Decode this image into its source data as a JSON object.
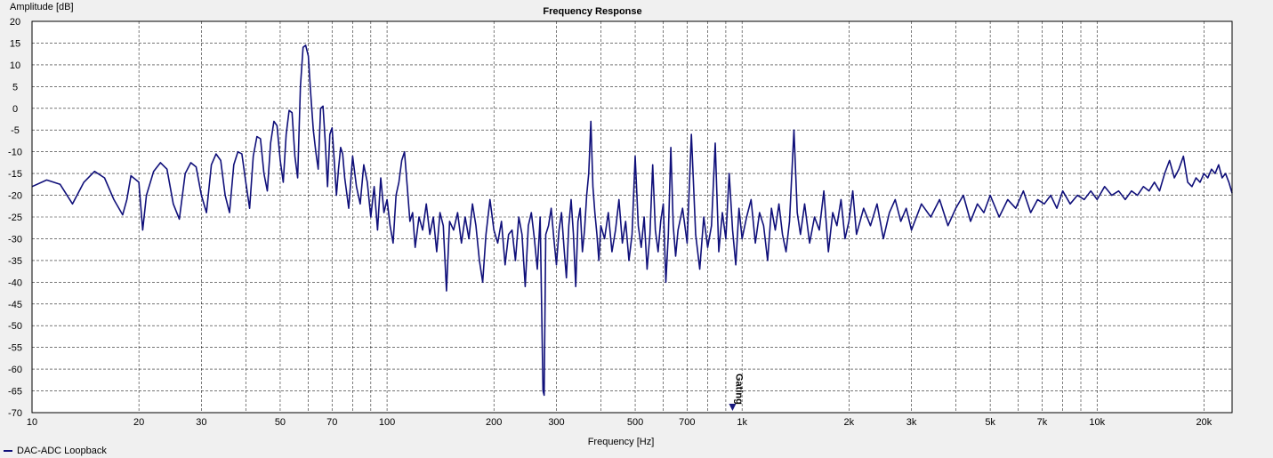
{
  "chart_data": {
    "type": "line",
    "title": "Frequency Response",
    "xlabel": "Frequency [Hz]",
    "ylabel": "Amplitude [dB]",
    "x_scale": "log",
    "xlim": [
      10,
      24000
    ],
    "ylim": [
      -70,
      20
    ],
    "grid": true,
    "legend_position": "bottom-left",
    "x_ticks": [
      10,
      20,
      30,
      50,
      70,
      100,
      200,
      300,
      500,
      700,
      1000,
      2000,
      3000,
      5000,
      7000,
      10000,
      20000
    ],
    "x_tick_labels": [
      "10",
      "20",
      "30",
      "50",
      "70",
      "100",
      "200",
      "300",
      "500",
      "700",
      "1k",
      "2k",
      "3k",
      "5k",
      "7k",
      "10k",
      "20k"
    ],
    "y_ticks": [
      20,
      15,
      10,
      5,
      0,
      -5,
      -10,
      -15,
      -20,
      -25,
      -30,
      -35,
      -40,
      -45,
      -50,
      -55,
      -60,
      -65,
      -70
    ],
    "y_tick_labels": [
      "20",
      "15",
      "10",
      "5",
      "0",
      "-5",
      "-10",
      "-15",
      "-20",
      "-25",
      "-30",
      "-35",
      "-40",
      "-45",
      "-50",
      "-55",
      "-60",
      "-65",
      "-70"
    ],
    "marker": {
      "label": "Gating",
      "x": 940,
      "color": "#1a1a7e"
    },
    "series": [
      {
        "name": "DAC-ADC Loopback",
        "color": "#10107a",
        "points": [
          [
            10,
            -18
          ],
          [
            11,
            -16.5
          ],
          [
            12,
            -17.5
          ],
          [
            13,
            -22
          ],
          [
            14,
            -17
          ],
          [
            15,
            -14.5
          ],
          [
            16,
            -16
          ],
          [
            17,
            -21
          ],
          [
            18,
            -24.5
          ],
          [
            18.5,
            -21
          ],
          [
            19,
            -15.5
          ],
          [
            20,
            -17
          ],
          [
            20.5,
            -28
          ],
          [
            21,
            -20
          ],
          [
            22,
            -14.5
          ],
          [
            23,
            -12.5
          ],
          [
            24,
            -14
          ],
          [
            25,
            -22
          ],
          [
            26,
            -25.5
          ],
          [
            27,
            -15
          ],
          [
            28,
            -12.5
          ],
          [
            29,
            -13.5
          ],
          [
            30,
            -20
          ],
          [
            31,
            -24
          ],
          [
            32,
            -13
          ],
          [
            33,
            -10.5
          ],
          [
            34,
            -12
          ],
          [
            35,
            -20
          ],
          [
            36,
            -24
          ],
          [
            37,
            -13
          ],
          [
            38,
            -10
          ],
          [
            39,
            -10.5
          ],
          [
            40,
            -17
          ],
          [
            41,
            -23
          ],
          [
            42,
            -11
          ],
          [
            43,
            -6.5
          ],
          [
            44,
            -7
          ],
          [
            45,
            -15
          ],
          [
            46,
            -19
          ],
          [
            47,
            -8
          ],
          [
            48,
            -3
          ],
          [
            49,
            -4
          ],
          [
            50,
            -12
          ],
          [
            51,
            -17
          ],
          [
            52,
            -6
          ],
          [
            53,
            -0.5
          ],
          [
            54,
            -1
          ],
          [
            55,
            -11
          ],
          [
            56,
            -16
          ],
          [
            57,
            5
          ],
          [
            58,
            14
          ],
          [
            59,
            14.5
          ],
          [
            60,
            12
          ],
          [
            61,
            3
          ],
          [
            62,
            -5
          ],
          [
            63,
            -10
          ],
          [
            64,
            -14
          ],
          [
            65,
            0
          ],
          [
            66,
            0.5
          ],
          [
            67,
            -8
          ],
          [
            68,
            -18
          ],
          [
            69,
            -6
          ],
          [
            70,
            -4.5
          ],
          [
            71,
            -12
          ],
          [
            72,
            -20
          ],
          [
            73,
            -14
          ],
          [
            74,
            -9
          ],
          [
            75,
            -10.5
          ],
          [
            76,
            -16
          ],
          [
            78,
            -23
          ],
          [
            80,
            -11
          ],
          [
            82,
            -18
          ],
          [
            84,
            -22
          ],
          [
            86,
            -13
          ],
          [
            88,
            -17
          ],
          [
            90,
            -25
          ],
          [
            92,
            -18
          ],
          [
            94,
            -28
          ],
          [
            96,
            -16
          ],
          [
            98,
            -24
          ],
          [
            100,
            -21
          ],
          [
            102,
            -27
          ],
          [
            104,
            -31
          ],
          [
            106,
            -20
          ],
          [
            108,
            -17
          ],
          [
            110,
            -12
          ],
          [
            112,
            -10
          ],
          [
            114,
            -18
          ],
          [
            116,
            -26
          ],
          [
            118,
            -24
          ],
          [
            120,
            -32
          ],
          [
            123,
            -25
          ],
          [
            126,
            -28
          ],
          [
            129,
            -22
          ],
          [
            132,
            -29
          ],
          [
            135,
            -25
          ],
          [
            138,
            -33
          ],
          [
            141,
            -24
          ],
          [
            144,
            -27
          ],
          [
            147,
            -42
          ],
          [
            150,
            -26
          ],
          [
            154,
            -28
          ],
          [
            158,
            -24
          ],
          [
            162,
            -31
          ],
          [
            166,
            -25
          ],
          [
            170,
            -30
          ],
          [
            174,
            -22
          ],
          [
            178,
            -27
          ],
          [
            182,
            -35
          ],
          [
            186,
            -40
          ],
          [
            190,
            -29
          ],
          [
            195,
            -21
          ],
          [
            200,
            -28
          ],
          [
            205,
            -31
          ],
          [
            210,
            -26
          ],
          [
            215,
            -36
          ],
          [
            220,
            -29
          ],
          [
            225,
            -28
          ],
          [
            230,
            -35
          ],
          [
            235,
            -25
          ],
          [
            240,
            -29
          ],
          [
            245,
            -41
          ],
          [
            250,
            -27
          ],
          [
            255,
            -24
          ],
          [
            260,
            -30
          ],
          [
            265,
            -37
          ],
          [
            270,
            -25
          ],
          [
            275,
            -65
          ],
          [
            277,
            -66
          ],
          [
            280,
            -29
          ],
          [
            285,
            -27
          ],
          [
            290,
            -23
          ],
          [
            295,
            -30
          ],
          [
            300,
            -36
          ],
          [
            305,
            -28
          ],
          [
            310,
            -24
          ],
          [
            315,
            -32
          ],
          [
            320,
            -39
          ],
          [
            325,
            -27
          ],
          [
            330,
            -21
          ],
          [
            335,
            -29
          ],
          [
            340,
            -41
          ],
          [
            345,
            -26
          ],
          [
            350,
            -23
          ],
          [
            355,
            -33
          ],
          [
            360,
            -28
          ],
          [
            365,
            -20
          ],
          [
            370,
            -15
          ],
          [
            375,
            -3
          ],
          [
            380,
            -18
          ],
          [
            385,
            -24
          ],
          [
            390,
            -29
          ],
          [
            395,
            -35
          ],
          [
            400,
            -27
          ],
          [
            410,
            -30
          ],
          [
            420,
            -24
          ],
          [
            430,
            -33
          ],
          [
            440,
            -28
          ],
          [
            450,
            -21
          ],
          [
            460,
            -31
          ],
          [
            470,
            -26
          ],
          [
            480,
            -35
          ],
          [
            490,
            -29
          ],
          [
            500,
            -11
          ],
          [
            510,
            -27
          ],
          [
            520,
            -32
          ],
          [
            530,
            -25
          ],
          [
            540,
            -37
          ],
          [
            550,
            -29
          ],
          [
            560,
            -13
          ],
          [
            570,
            -28
          ],
          [
            580,
            -33
          ],
          [
            590,
            -26
          ],
          [
            600,
            -22
          ],
          [
            610,
            -40
          ],
          [
            620,
            -29
          ],
          [
            630,
            -9
          ],
          [
            640,
            -27
          ],
          [
            650,
            -34
          ],
          [
            660,
            -28
          ],
          [
            680,
            -23
          ],
          [
            700,
            -31
          ],
          [
            720,
            -6
          ],
          [
            740,
            -29
          ],
          [
            760,
            -37
          ],
          [
            780,
            -25
          ],
          [
            800,
            -32
          ],
          [
            820,
            -27
          ],
          [
            840,
            -8
          ],
          [
            860,
            -33
          ],
          [
            880,
            -24
          ],
          [
            900,
            -30
          ],
          [
            920,
            -15
          ],
          [
            940,
            -28
          ],
          [
            960,
            -36
          ],
          [
            980,
            -23
          ],
          [
            1000,
            -30
          ],
          [
            1030,
            -25
          ],
          [
            1060,
            -21
          ],
          [
            1090,
            -31
          ],
          [
            1120,
            -24
          ],
          [
            1150,
            -27
          ],
          [
            1180,
            -35
          ],
          [
            1210,
            -23
          ],
          [
            1240,
            -28
          ],
          [
            1270,
            -22
          ],
          [
            1300,
            -29
          ],
          [
            1330,
            -33
          ],
          [
            1360,
            -26
          ],
          [
            1400,
            -5
          ],
          [
            1430,
            -24
          ],
          [
            1460,
            -29
          ],
          [
            1500,
            -22
          ],
          [
            1550,
            -31
          ],
          [
            1600,
            -25
          ],
          [
            1650,
            -28
          ],
          [
            1700,
            -19
          ],
          [
            1750,
            -33
          ],
          [
            1800,
            -24
          ],
          [
            1850,
            -27
          ],
          [
            1900,
            -21
          ],
          [
            1950,
            -30
          ],
          [
            2000,
            -26
          ],
          [
            2050,
            -19
          ],
          [
            2100,
            -29
          ],
          [
            2200,
            -23
          ],
          [
            2300,
            -27
          ],
          [
            2400,
            -22
          ],
          [
            2500,
            -30
          ],
          [
            2600,
            -24
          ],
          [
            2700,
            -21
          ],
          [
            2800,
            -26
          ],
          [
            2900,
            -23
          ],
          [
            3000,
            -28
          ],
          [
            3200,
            -22
          ],
          [
            3400,
            -25
          ],
          [
            3600,
            -21
          ],
          [
            3800,
            -27
          ],
          [
            4000,
            -23
          ],
          [
            4200,
            -20
          ],
          [
            4400,
            -26
          ],
          [
            4600,
            -22
          ],
          [
            4800,
            -24
          ],
          [
            5000,
            -20
          ],
          [
            5300,
            -25
          ],
          [
            5600,
            -21
          ],
          [
            5900,
            -23
          ],
          [
            6200,
            -19
          ],
          [
            6500,
            -24
          ],
          [
            6800,
            -21
          ],
          [
            7100,
            -22
          ],
          [
            7400,
            -20
          ],
          [
            7700,
            -23
          ],
          [
            8000,
            -19
          ],
          [
            8400,
            -22
          ],
          [
            8800,
            -20
          ],
          [
            9200,
            -21
          ],
          [
            9600,
            -19
          ],
          [
            10000,
            -21
          ],
          [
            10500,
            -18
          ],
          [
            11000,
            -20
          ],
          [
            11500,
            -19
          ],
          [
            12000,
            -21
          ],
          [
            12500,
            -19
          ],
          [
            13000,
            -20
          ],
          [
            13500,
            -18
          ],
          [
            14000,
            -19
          ],
          [
            14500,
            -17
          ],
          [
            15000,
            -19
          ],
          [
            15500,
            -15
          ],
          [
            16000,
            -12
          ],
          [
            16500,
            -16
          ],
          [
            17000,
            -14
          ],
          [
            17500,
            -11
          ],
          [
            18000,
            -17
          ],
          [
            18500,
            -18
          ],
          [
            19000,
            -16
          ],
          [
            19500,
            -17
          ],
          [
            20000,
            -15
          ],
          [
            20500,
            -16
          ],
          [
            21000,
            -14
          ],
          [
            21500,
            -15
          ],
          [
            22000,
            -13
          ],
          [
            22500,
            -16
          ],
          [
            23000,
            -15
          ],
          [
            23500,
            -17
          ],
          [
            24000,
            -19.5
          ]
        ]
      }
    ]
  }
}
